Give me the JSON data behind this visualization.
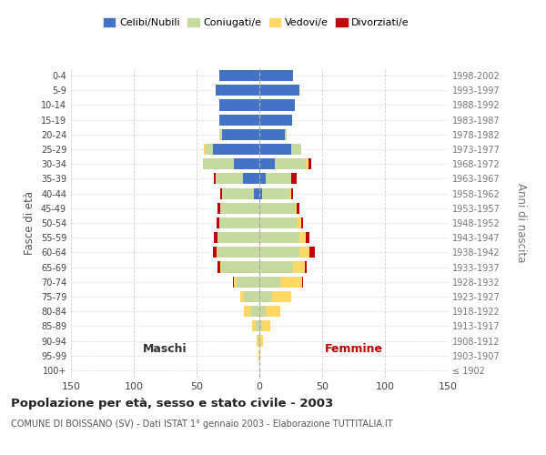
{
  "age_groups": [
    "100+",
    "95-99",
    "90-94",
    "85-89",
    "80-84",
    "75-79",
    "70-74",
    "65-69",
    "60-64",
    "55-59",
    "50-54",
    "45-49",
    "40-44",
    "35-39",
    "30-34",
    "25-29",
    "20-24",
    "15-19",
    "10-14",
    "5-9",
    "0-4"
  ],
  "birth_years": [
    "≤ 1902",
    "1903-1907",
    "1908-1912",
    "1913-1917",
    "1918-1922",
    "1923-1927",
    "1928-1932",
    "1933-1937",
    "1938-1942",
    "1943-1947",
    "1948-1952",
    "1953-1957",
    "1958-1962",
    "1963-1967",
    "1968-1972",
    "1973-1977",
    "1978-1982",
    "1983-1987",
    "1988-1992",
    "1993-1997",
    "1998-2002"
  ],
  "male": {
    "celibi": [
      0,
      0,
      0,
      0,
      0,
      0,
      0,
      0,
      0,
      0,
      0,
      0,
      4,
      13,
      20,
      37,
      30,
      32,
      32,
      35,
      32
    ],
    "coniugati": [
      0,
      0,
      1,
      3,
      7,
      12,
      18,
      30,
      33,
      33,
      32,
      31,
      26,
      22,
      25,
      6,
      1,
      0,
      0,
      0,
      0
    ],
    "vedovi": [
      0,
      1,
      1,
      3,
      5,
      3,
      2,
      1,
      1,
      0,
      0,
      0,
      0,
      0,
      0,
      1,
      1,
      0,
      0,
      0,
      0
    ],
    "divorziati": [
      0,
      0,
      0,
      0,
      0,
      0,
      1,
      2,
      3,
      3,
      2,
      2,
      1,
      1,
      0,
      0,
      0,
      0,
      0,
      0,
      0
    ]
  },
  "female": {
    "nubili": [
      0,
      0,
      0,
      0,
      0,
      0,
      0,
      0,
      0,
      0,
      0,
      0,
      2,
      5,
      12,
      25,
      20,
      26,
      28,
      32,
      27
    ],
    "coniugate": [
      0,
      0,
      1,
      2,
      5,
      10,
      17,
      27,
      32,
      32,
      30,
      28,
      22,
      20,
      25,
      8,
      2,
      0,
      0,
      0,
      0
    ],
    "vedove": [
      0,
      1,
      2,
      7,
      12,
      15,
      17,
      9,
      8,
      5,
      3,
      2,
      1,
      0,
      2,
      0,
      0,
      0,
      0,
      0,
      0
    ],
    "divorziate": [
      0,
      0,
      0,
      0,
      0,
      0,
      1,
      2,
      4,
      3,
      2,
      2,
      2,
      5,
      2,
      0,
      0,
      0,
      0,
      0,
      0
    ]
  },
  "colors": {
    "celibi_nubili": "#4472c4",
    "coniugati": "#c5d9a0",
    "vedovi": "#ffd966",
    "divorziati": "#c0000a"
  },
  "xlim": 150,
  "title": "Popolazione per età, sesso e stato civile - 2003",
  "subtitle": "COMUNE DI BOISSANO (SV) - Dati ISTAT 1° gennaio 2003 - Elaborazione TUTTITALIA.IT",
  "ylabel_left": "Fasce di età",
  "ylabel_right": "Anni di nascita",
  "xlabel_left": "Maschi",
  "xlabel_right": "Femmine",
  "bg_color": "#ffffff",
  "grid_color": "#cccccc"
}
